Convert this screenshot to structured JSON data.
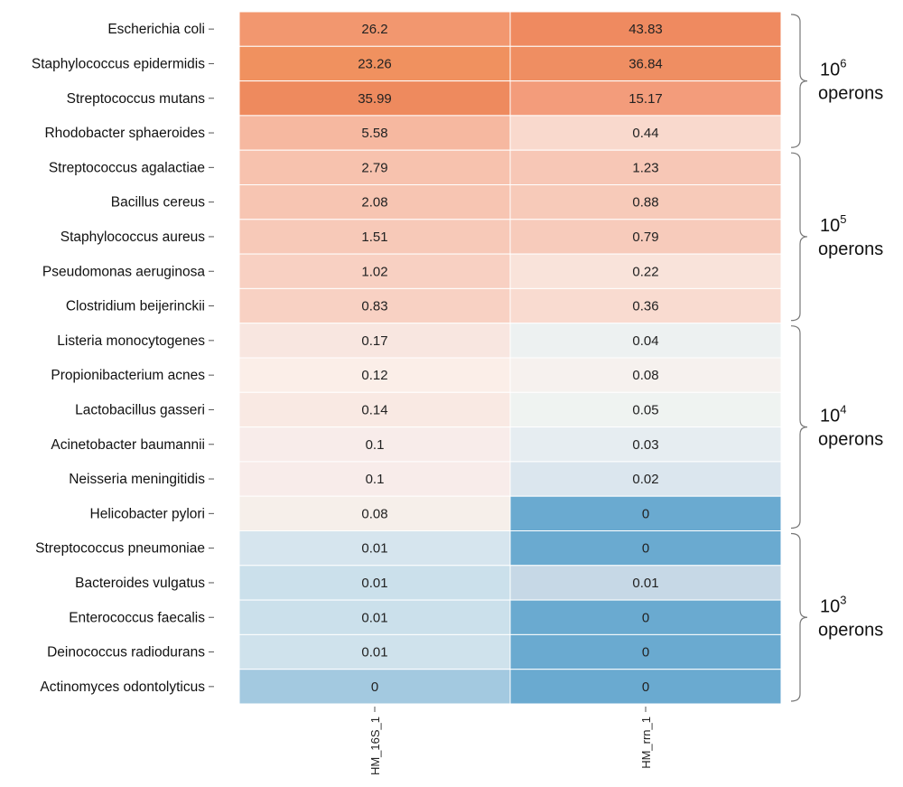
{
  "chart_data": {
    "type": "heatmap",
    "rows": [
      "Escherichia coli",
      "Staphylococcus epidermidis",
      "Streptococcus mutans",
      "Rhodobacter sphaeroides",
      "Streptococcus agalactiae",
      "Bacillus cereus",
      "Staphylococcus aureus",
      "Pseudomonas aeruginosa",
      "Clostridium beijerinckii",
      "Listeria monocytogenes",
      "Propionibacterium acnes",
      "Lactobacillus gasseri",
      "Acinetobacter baumannii",
      "Neisseria meningitidis",
      "Helicobacter pylori",
      "Streptococcus pneumoniae",
      "Bacteroides vulgatus",
      "Enterococcus faecalis",
      "Deinococcus radiodurans",
      "Actinomyces odontolyticus"
    ],
    "columns": [
      "HM_16S_1",
      "HM_rrn_1"
    ],
    "values": [
      [
        26.2,
        43.83
      ],
      [
        23.26,
        36.84
      ],
      [
        35.99,
        15.17
      ],
      [
        5.58,
        0.44
      ],
      [
        2.79,
        1.23
      ],
      [
        2.08,
        0.88
      ],
      [
        1.51,
        0.79
      ],
      [
        1.02,
        0.22
      ],
      [
        0.83,
        0.36
      ],
      [
        0.17,
        0.04
      ],
      [
        0.12,
        0.08
      ],
      [
        0.14,
        0.05
      ],
      [
        0.1,
        0.03
      ],
      [
        0.1,
        0.02
      ],
      [
        0.08,
        0
      ],
      [
        0.01,
        0
      ],
      [
        0.01,
        0.01
      ],
      [
        0.01,
        0
      ],
      [
        0.01,
        0
      ],
      [
        0,
        0
      ]
    ],
    "value_labels": [
      [
        "26.2",
        "43.83"
      ],
      [
        "23.26",
        "36.84"
      ],
      [
        "35.99",
        "15.17"
      ],
      [
        "5.58",
        "0.44"
      ],
      [
        "2.79",
        "1.23"
      ],
      [
        "2.08",
        "0.88"
      ],
      [
        "1.51",
        "0.79"
      ],
      [
        "1.02",
        "0.22"
      ],
      [
        "0.83",
        "0.36"
      ],
      [
        "0.17",
        "0.04"
      ],
      [
        "0.12",
        "0.08"
      ],
      [
        "0.14",
        "0.05"
      ],
      [
        "0.1",
        "0.03"
      ],
      [
        "0.1",
        "0.02"
      ],
      [
        "0.08",
        "0"
      ],
      [
        "0.01",
        "0"
      ],
      [
        "0.01",
        "0.01"
      ],
      [
        "0.01",
        "0"
      ],
      [
        "0.01",
        "0"
      ],
      [
        "0",
        "0"
      ]
    ],
    "cell_colors": [
      [
        "#f2976f",
        "#ef8a60"
      ],
      [
        "#f0915f",
        "#ef8e62"
      ],
      [
        "#ee8a5e",
        "#f39c7b"
      ],
      [
        "#f6b8a0",
        "#f9d9cd"
      ],
      [
        "#f7c2ae",
        "#f7c7b6"
      ],
      [
        "#f7c5b2",
        "#f7cab9"
      ],
      [
        "#f7c9b8",
        "#f7cbbb"
      ],
      [
        "#f8d0c2",
        "#f9e3da"
      ],
      [
        "#f8d1c3",
        "#f9dbd0"
      ],
      [
        "#f8e6e0",
        "#edf1f1"
      ],
      [
        "#fbeee8",
        "#f6f1ee"
      ],
      [
        "#f9e9e3",
        "#eff3f1"
      ],
      [
        "#f8ecea",
        "#e6edf1"
      ],
      [
        "#f8ecea",
        "#dbe6ee"
      ],
      [
        "#f6efea",
        "#6aaad0"
      ],
      [
        "#d6e5ee",
        "#6aaad0"
      ],
      [
        "#cbe0eb",
        "#c6d8e6"
      ],
      [
        "#cbe0eb",
        "#6aaad0"
      ],
      [
        "#cfe2ec",
        "#6aaad0"
      ],
      [
        "#a3c9e0",
        "#6aaad0"
      ]
    ],
    "groups": [
      {
        "base": "10",
        "exponent": "6",
        "label": "operons",
        "first_row": 0,
        "last_row": 3
      },
      {
        "base": "10",
        "exponent": "5",
        "label": "operons",
        "first_row": 4,
        "last_row": 8
      },
      {
        "base": "10",
        "exponent": "4",
        "label": "operons",
        "first_row": 9,
        "last_row": 14
      },
      {
        "base": "10",
        "exponent": "3",
        "label": "operons",
        "first_row": 15,
        "last_row": 19
      }
    ]
  }
}
